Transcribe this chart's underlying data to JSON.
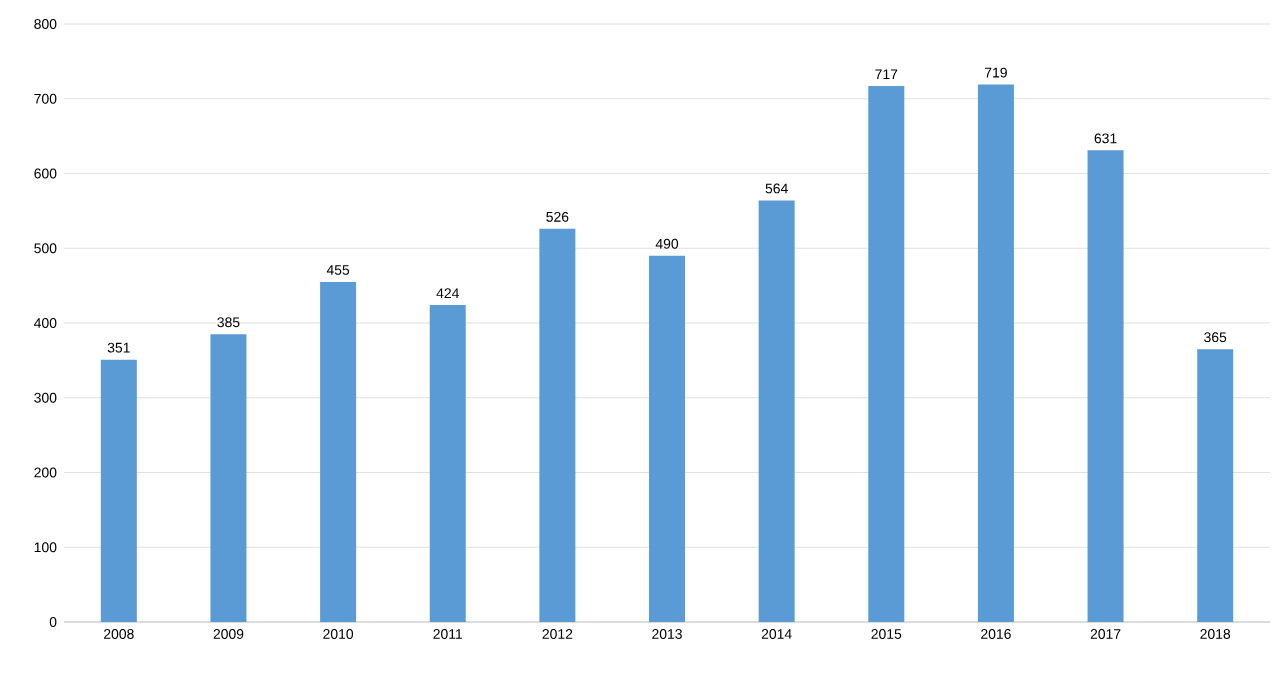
{
  "chart_data": {
    "type": "bar",
    "categories": [
      "2008",
      "2009",
      "2010",
      "2011",
      "2012",
      "2013",
      "2014",
      "2015",
      "2016",
      "2017",
      "2018"
    ],
    "values": [
      351,
      385,
      455,
      424,
      526,
      490,
      564,
      717,
      719,
      631,
      365
    ],
    "color": "#5b9bd5",
    "ylim": [
      0,
      800
    ],
    "yticks": [
      0,
      100,
      200,
      300,
      400,
      500,
      600,
      700,
      800
    ],
    "grid": "y",
    "data_labels": true
  }
}
